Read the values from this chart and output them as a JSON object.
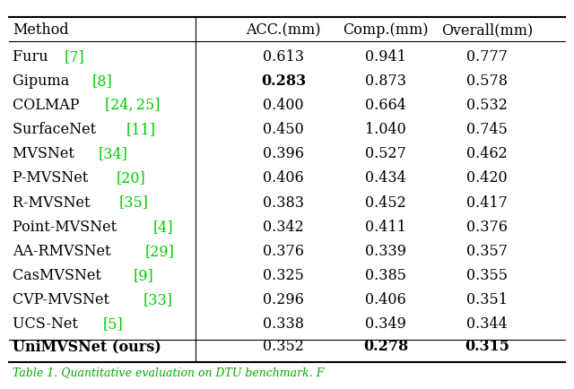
{
  "columns": [
    "Method",
    "ACC.(mm)",
    "Comp.(mm)",
    "Overall(mm)"
  ],
  "rows": [
    {
      "method_plain": "Furu ",
      "method_ref": "[7]",
      "acc": "0.613",
      "comp": "0.941",
      "overall": "0.777",
      "acc_bold": false,
      "comp_bold": false,
      "overall_bold": false
    },
    {
      "method_plain": "Gipuma ",
      "method_ref": "[8]",
      "acc": "0.283",
      "comp": "0.873",
      "overall": "0.578",
      "acc_bold": true,
      "comp_bold": false,
      "overall_bold": false
    },
    {
      "method_plain": "COLMAP ",
      "method_ref": "[24, 25]",
      "acc": "0.400",
      "comp": "0.664",
      "overall": "0.532",
      "acc_bold": false,
      "comp_bold": false,
      "overall_bold": false
    },
    {
      "method_plain": "SurfaceNet ",
      "method_ref": "[11]",
      "acc": "0.450",
      "comp": "1.040",
      "overall": "0.745",
      "acc_bold": false,
      "comp_bold": false,
      "overall_bold": false
    },
    {
      "method_plain": "MVSNet ",
      "method_ref": "[34]",
      "acc": "0.396",
      "comp": "0.527",
      "overall": "0.462",
      "acc_bold": false,
      "comp_bold": false,
      "overall_bold": false
    },
    {
      "method_plain": "P-MVSNet ",
      "method_ref": "[20]",
      "acc": "0.406",
      "comp": "0.434",
      "overall": "0.420",
      "acc_bold": false,
      "comp_bold": false,
      "overall_bold": false
    },
    {
      "method_plain": "R-MVSNet ",
      "method_ref": "[35]",
      "acc": "0.383",
      "comp": "0.452",
      "overall": "0.417",
      "acc_bold": false,
      "comp_bold": false,
      "overall_bold": false
    },
    {
      "method_plain": "Point-MVSNet ",
      "method_ref": "[4]",
      "acc": "0.342",
      "comp": "0.411",
      "overall": "0.376",
      "acc_bold": false,
      "comp_bold": false,
      "overall_bold": false
    },
    {
      "method_plain": "AA-RMVSNet ",
      "method_ref": "[29]",
      "acc": "0.376",
      "comp": "0.339",
      "overall": "0.357",
      "acc_bold": false,
      "comp_bold": false,
      "overall_bold": false
    },
    {
      "method_plain": "CasMVSNet ",
      "method_ref": "[9]",
      "acc": "0.325",
      "comp": "0.385",
      "overall": "0.355",
      "acc_bold": false,
      "comp_bold": false,
      "overall_bold": false
    },
    {
      "method_plain": "CVP-MVSNet ",
      "method_ref": "[33]",
      "acc": "0.296",
      "comp": "0.406",
      "overall": "0.351",
      "acc_bold": false,
      "comp_bold": false,
      "overall_bold": false
    },
    {
      "method_plain": "UCS-Net ",
      "method_ref": "[5]",
      "acc": "0.338",
      "comp": "0.349",
      "overall": "0.344",
      "acc_bold": false,
      "comp_bold": false,
      "overall_bold": false
    },
    {
      "method_plain": "UniMVSNet (ours)",
      "method_ref": "",
      "acc": "0.352",
      "comp": "0.278",
      "overall": "0.315",
      "acc_bold": false,
      "comp_bold": true,
      "overall_bold": true
    }
  ],
  "bg_color": "#ffffff",
  "text_color": "#000000",
  "ref_color": "#00cc00",
  "caption_color": "#00aa00",
  "font_size": 11.5,
  "header_font_size": 11.5,
  "caption_text": "Table 1. Quantitative evaluation on DTU benchmark. F",
  "caption_font_size": 9.0
}
